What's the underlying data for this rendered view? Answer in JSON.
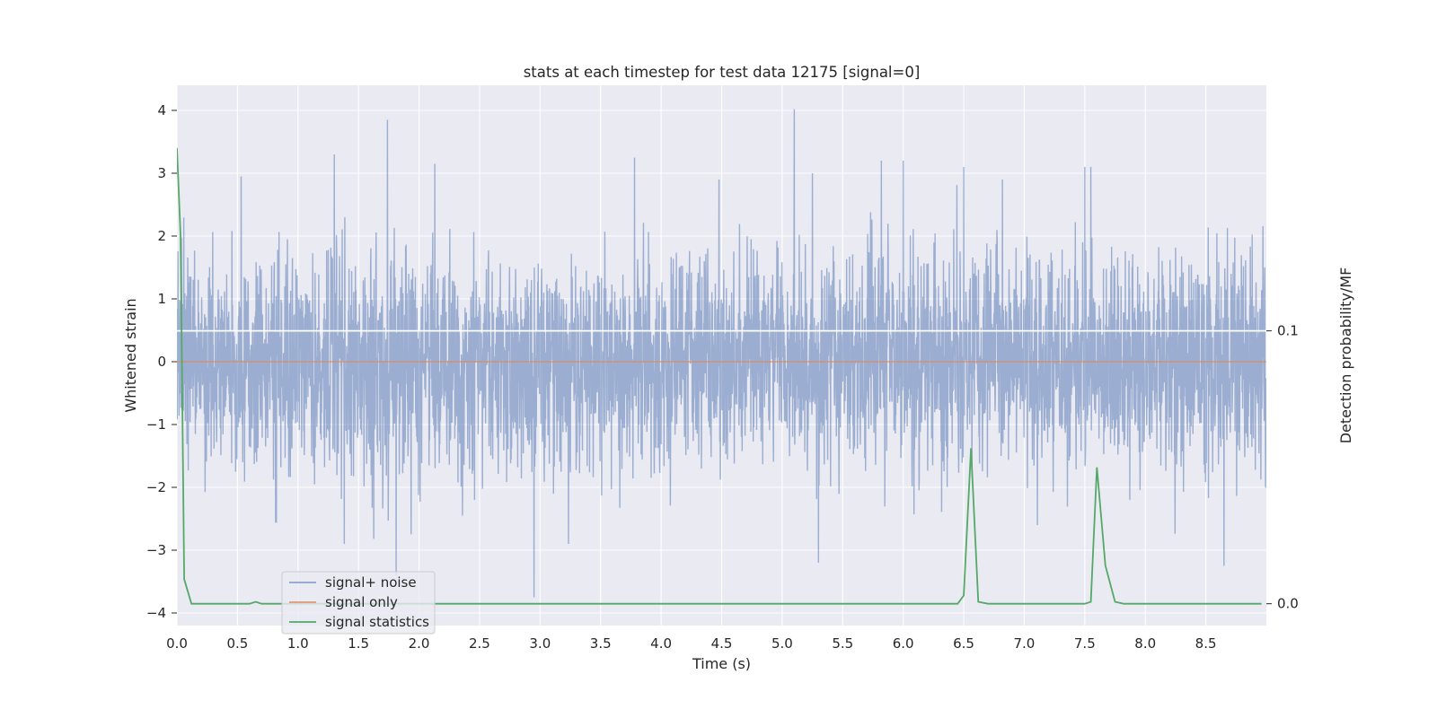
{
  "chart_data": {
    "type": "line",
    "title": "stats at each timestep for test data 12175 [signal=0]",
    "xlabel": "Time (s)",
    "ylabel": "Whitened strain",
    "y2label": "Detection probability/MF",
    "xlim": [
      0.0,
      9.0
    ],
    "ylim": [
      -4.2,
      4.4
    ],
    "y2lim": [
      -0.008,
      0.19
    ],
    "xticks": [
      "0.0",
      "0.5",
      "1.0",
      "1.5",
      "2.0",
      "2.5",
      "3.0",
      "3.5",
      "4.0",
      "4.5",
      "5.0",
      "5.5",
      "6.0",
      "6.5",
      "7.0",
      "7.5",
      "8.0",
      "8.5"
    ],
    "yticks": [
      "4",
      "3",
      "2",
      "1",
      "0",
      "−1",
      "−2",
      "−3",
      "−4"
    ],
    "y2ticks": [
      "0.1",
      "0.0"
    ],
    "grid": true,
    "legend_position": "lower-left",
    "colors": {
      "signal_noise": "#4c72b0",
      "signal_only": "#dd8452",
      "signal_statistics": "#55a868",
      "background": "#eaeaf2",
      "grid": "#ffffff"
    },
    "series": [
      {
        "name": "signal+ noise",
        "axis": "left",
        "sample_rate_hz": 460,
        "noise_sigma": 0.85,
        "peaks": [
          {
            "x": 0.53,
            "y": 2.95
          },
          {
            "x": 1.3,
            "y": 3.3
          },
          {
            "x": 1.74,
            "y": 3.85
          },
          {
            "x": 2.13,
            "y": 3.15
          },
          {
            "x": 2.95,
            "y": -3.75
          },
          {
            "x": 3.78,
            "y": 3.25
          },
          {
            "x": 5.1,
            "y": 4.02
          },
          {
            "x": 5.25,
            "y": 3.0
          },
          {
            "x": 5.82,
            "y": 3.2
          },
          {
            "x": 6.0,
            "y": 3.2
          },
          {
            "x": 6.5,
            "y": 3.1
          },
          {
            "x": 7.5,
            "y": 3.1
          },
          {
            "x": 7.55,
            "y": 3.1
          },
          {
            "x": 1.81,
            "y": -3.4
          },
          {
            "x": 5.3,
            "y": -3.2
          },
          {
            "x": 8.65,
            "y": -3.25
          }
        ]
      },
      {
        "name": "signal only",
        "axis": "left",
        "x": [
          0.0,
          9.0
        ],
        "y": [
          0.0,
          0.0
        ]
      },
      {
        "name": "signal statistics",
        "axis": "right",
        "x": [
          0.0,
          0.03,
          0.06,
          0.12,
          0.18,
          0.6,
          0.65,
          0.7,
          1.0,
          6.3,
          6.45,
          6.5,
          6.56,
          6.62,
          6.7,
          7.5,
          7.55,
          7.6,
          7.67,
          7.75,
          7.82,
          8.96
        ],
        "y": [
          0.167,
          0.135,
          0.009,
          0.0,
          0.0,
          0.0,
          0.0007,
          0.0,
          0.0,
          0.0,
          0.0,
          0.003,
          0.057,
          0.0007,
          0.0,
          0.0,
          0.0007,
          0.05,
          0.014,
          0.0007,
          0.0,
          0.0
        ]
      }
    ],
    "annotations": [
      {
        "type": "hline",
        "axis": "right",
        "y": 0.1
      }
    ]
  }
}
